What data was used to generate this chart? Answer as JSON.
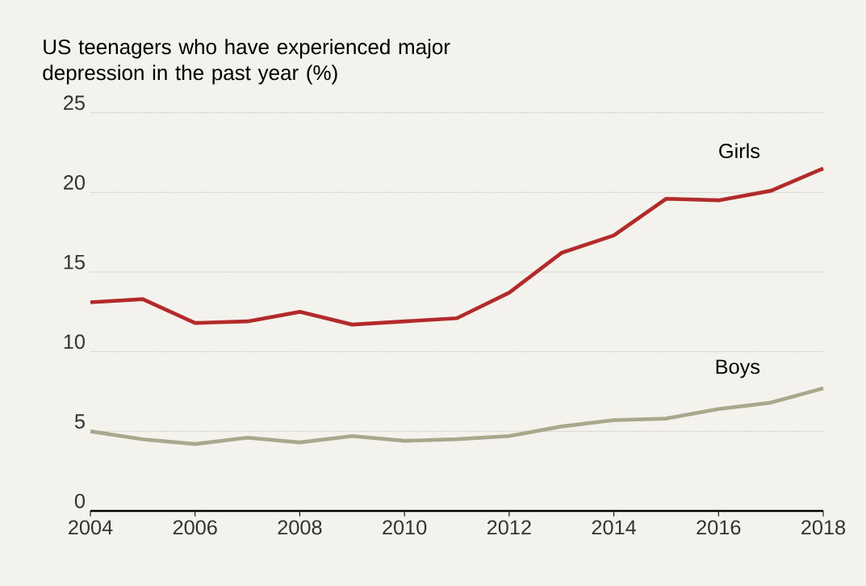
{
  "chart_data": {
    "type": "line",
    "title": "US teenagers who have experienced major depression in the past year (%)",
    "x": [
      2004,
      2005,
      2006,
      2007,
      2008,
      2009,
      2010,
      2011,
      2012,
      2013,
      2014,
      2015,
      2016,
      2017,
      2018
    ],
    "series": [
      {
        "name": "Girls",
        "color": "#b22a2a",
        "values": [
          13.1,
          13.3,
          11.8,
          11.9,
          12.5,
          11.7,
          11.9,
          12.1,
          13.7,
          16.2,
          17.3,
          19.6,
          19.5,
          20.1,
          21.5
        ]
      },
      {
        "name": "Boys",
        "color": "#a8a88e",
        "values": [
          5.0,
          4.5,
          4.2,
          4.6,
          4.3,
          4.7,
          4.4,
          4.5,
          4.7,
          5.3,
          5.7,
          5.8,
          6.4,
          6.8,
          7.7
        ]
      }
    ],
    "xlim": [
      2004,
      2018
    ],
    "ylim": [
      0,
      25
    ],
    "xticks": [
      2004,
      2006,
      2008,
      2010,
      2012,
      2014,
      2016,
      2018
    ],
    "yticks": [
      0,
      5,
      10,
      15,
      20,
      25
    ],
    "grid": "y"
  }
}
